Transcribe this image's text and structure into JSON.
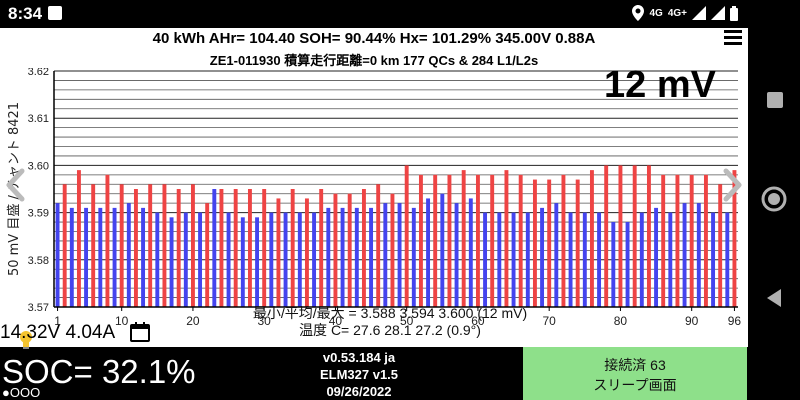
{
  "status_bar": {
    "time": "8:34",
    "network_labels": [
      "4G",
      "4G+"
    ],
    "icons": [
      "notification-square-icon",
      "location-icon",
      "signal-icon",
      "wifi-signal-icon",
      "battery-icon"
    ]
  },
  "header": {
    "line1": "40 kWh  AHr= 104.40  SOH= 90.44%   Hx= 101.29%   345.00V 0.88A",
    "line2": "ZE1-011930 積算走行距離=0 km  177 QCs & 284 L1/L2s"
  },
  "range_label": "12 mV",
  "chart_data": {
    "type": "bar",
    "ylabel": "50 mV 目盛 / チャント 8421",
    "ylim": [
      3.57,
      3.62
    ],
    "yticks": [
      "3.57",
      "3.58",
      "3.59",
      "3.60",
      "3.61",
      "3.62"
    ],
    "xticks": [
      "1",
      "10",
      "20",
      "30",
      "40",
      "50",
      "60",
      "70",
      "80",
      "90",
      "96"
    ],
    "grid": true,
    "colors": {
      "even": "#ee4444",
      "odd": "#4444ee",
      "axis": "#000000"
    },
    "values": [
      3.592,
      3.596,
      3.591,
      3.599,
      3.591,
      3.596,
      3.591,
      3.598,
      3.591,
      3.596,
      3.592,
      3.595,
      3.591,
      3.596,
      3.59,
      3.596,
      3.589,
      3.595,
      3.59,
      3.596,
      3.59,
      3.592,
      3.595,
      3.595,
      3.59,
      3.595,
      3.589,
      3.595,
      3.589,
      3.595,
      3.59,
      3.593,
      3.59,
      3.595,
      3.59,
      3.593,
      3.59,
      3.595,
      3.591,
      3.594,
      3.591,
      3.594,
      3.591,
      3.595,
      3.591,
      3.596,
      3.592,
      3.594,
      3.592,
      3.6,
      3.591,
      3.598,
      3.593,
      3.598,
      3.594,
      3.598,
      3.592,
      3.599,
      3.593,
      3.598,
      3.59,
      3.598,
      3.59,
      3.599,
      3.59,
      3.598,
      3.59,
      3.597,
      3.591,
      3.597,
      3.592,
      3.598,
      3.59,
      3.597,
      3.59,
      3.599,
      3.59,
      3.6,
      3.588,
      3.6,
      3.588,
      3.6,
      3.59,
      3.6,
      3.591,
      3.598,
      3.59,
      3.598,
      3.592,
      3.598,
      3.592,
      3.598,
      3.59,
      3.596,
      3.59,
      3.599
    ]
  },
  "stats": {
    "minmax": "最小/平均/最大 = 3.588 3.594 3.600  (12 mV)",
    "temps": "温度 C= 27.6  28.1  27.2  (0.9°)"
  },
  "readout": "14.32V 4.04A",
  "soc": "SOC= 32.1%",
  "pager": "●OOO",
  "version": {
    "line1": "v0.53.184 ja",
    "line2": "ELM327 v1.5",
    "line3": "09/26/2022"
  },
  "connection": {
    "line1": "接続済 63",
    "line2": "スリープ画面"
  }
}
